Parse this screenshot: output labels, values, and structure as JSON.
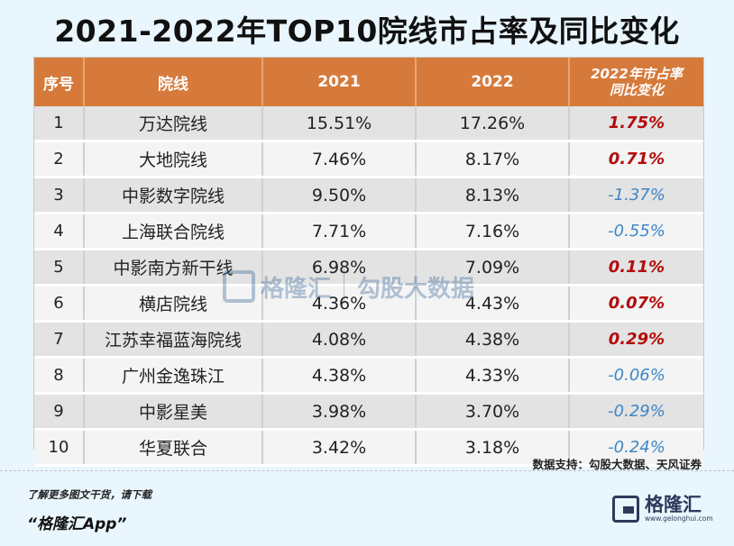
{
  "title": "2021-2022年TOP10院线市占率及同比变化",
  "header": {
    "col_index": "序号",
    "col_name": "院线",
    "col_2021": "2021",
    "col_2022": "2022",
    "col_change_line1": "2022年市占率",
    "col_change_line2": "同比变化"
  },
  "chart_data": {
    "type": "table",
    "title": "2021-2022年TOP10院线市占率及同比变化",
    "columns": [
      "序号",
      "院线",
      "2021",
      "2022",
      "2022年市占率同比变化"
    ],
    "rows": [
      {
        "idx": "1",
        "name": "万达院线",
        "y2021": "15.51%",
        "y2022": "17.26%",
        "change": "1.75%"
      },
      {
        "idx": "2",
        "name": "大地院线",
        "y2021": "7.46%",
        "y2022": "8.17%",
        "change": "0.71%"
      },
      {
        "idx": "3",
        "name": "中影数字院线",
        "y2021": "9.50%",
        "y2022": "8.13%",
        "change": "-1.37%"
      },
      {
        "idx": "4",
        "name": "上海联合院线",
        "y2021": "7.71%",
        "y2022": "7.16%",
        "change": "-0.55%"
      },
      {
        "idx": "5",
        "name": "中影南方新干线",
        "y2021": "6.98%",
        "y2022": "7.09%",
        "change": "0.11%"
      },
      {
        "idx": "6",
        "name": "横店院线",
        "y2021": "4.36%",
        "y2022": "4.43%",
        "change": "0.07%"
      },
      {
        "idx": "7",
        "name": "江苏幸福蓝海院线",
        "y2021": "4.08%",
        "y2022": "4.38%",
        "change": "0.29%"
      },
      {
        "idx": "8",
        "name": "广州金逸珠江",
        "y2021": "4.38%",
        "y2022": "4.33%",
        "change": "-0.06%"
      },
      {
        "idx": "9",
        "name": "中影星美",
        "y2021": "3.98%",
        "y2022": "3.70%",
        "change": "-0.29%"
      },
      {
        "idx": "10",
        "name": "华夏联合",
        "y2021": "3.42%",
        "y2022": "3.18%",
        "change": "-0.24%"
      }
    ]
  },
  "colors": {
    "header_bg": "#d57a3b",
    "positive": "#b30c0c",
    "negative": "#3d86c6"
  },
  "source": "数据支持：勾股大数据、天风证券",
  "footer": {
    "line1": "了解更多图文干货，请下载",
    "line2": "“格隆汇App”"
  },
  "logo": {
    "brand": "格隆汇",
    "url": "www.gelonghui.com"
  },
  "watermark": {
    "brand1": "格隆汇",
    "brand2": "勾股大数据"
  }
}
